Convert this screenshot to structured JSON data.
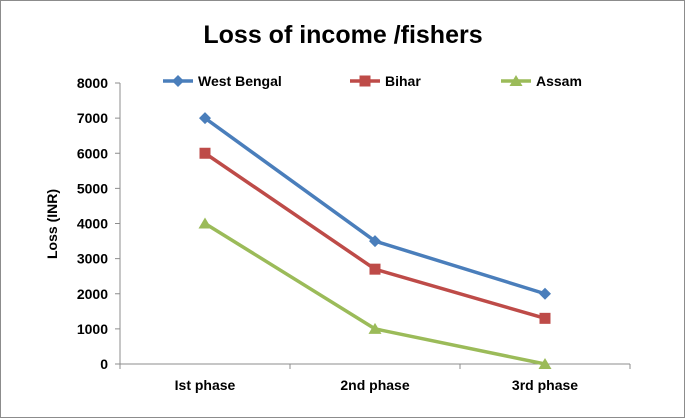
{
  "chart_data": {
    "type": "line",
    "title": "Loss of income /fishers",
    "xlabel": "",
    "ylabel": "Loss (INR)",
    "categories": [
      "Ist phase",
      "2nd phase",
      "3rd phase"
    ],
    "ylim": [
      0,
      8000
    ],
    "yticks": [
      0,
      1000,
      2000,
      3000,
      4000,
      5000,
      6000,
      7000,
      8000
    ],
    "grid": false,
    "legend_position": "top",
    "series": [
      {
        "name": "West Bengal",
        "values": [
          7000,
          3500,
          2000
        ],
        "color": "#4a7ebb",
        "marker": "diamond"
      },
      {
        "name": "Bihar",
        "values": [
          6000,
          2700,
          1300
        ],
        "color": "#be4b48",
        "marker": "square"
      },
      {
        "name": "Assam",
        "values": [
          4000,
          1000,
          0
        ],
        "color": "#9bbb59",
        "marker": "triangle"
      }
    ]
  }
}
